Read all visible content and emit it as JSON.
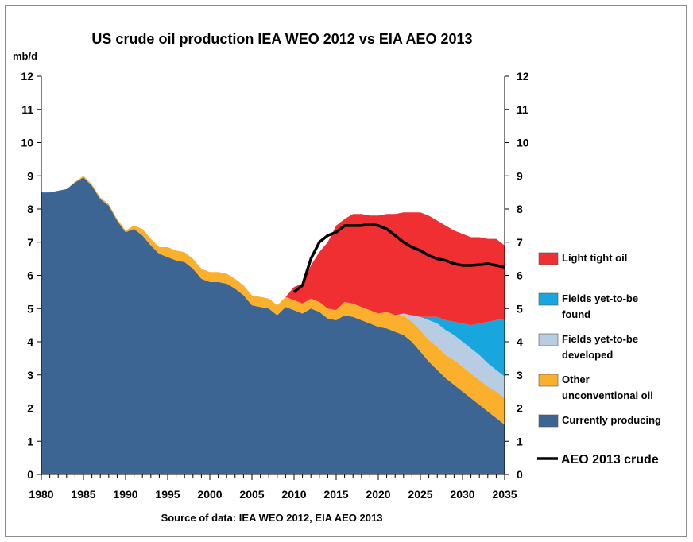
{
  "chart_data": {
    "type": "area",
    "title": "US  crude oil production  IEA WEO 2012 vs EIA AEO 2013",
    "ylabel": "mb/d",
    "source": "Source of data: IEA WEO 2012,  EIA AEO 2013",
    "xlim": [
      1980,
      2035
    ],
    "ylim": [
      0,
      12
    ],
    "x_ticks": [
      "1980",
      "1985",
      "1990",
      "1995",
      "2000",
      "2005",
      "2010",
      "2015",
      "2020",
      "2025",
      "2030",
      "2035"
    ],
    "y_ticks": [
      "0",
      "1",
      "2",
      "3",
      "4",
      "5",
      "6",
      "7",
      "8",
      "9",
      "10",
      "11",
      "12"
    ],
    "grid": false,
    "legend_position": "right",
    "x": [
      1980,
      1981,
      1982,
      1983,
      1984,
      1985,
      1986,
      1987,
      1988,
      1989,
      1990,
      1991,
      1992,
      1993,
      1994,
      1995,
      1996,
      1997,
      1998,
      1999,
      2000,
      2001,
      2002,
      2003,
      2004,
      2005,
      2006,
      2007,
      2008,
      2009,
      2010,
      2011,
      2012,
      2013,
      2014,
      2015,
      2016,
      2017,
      2018,
      2019,
      2020,
      2021,
      2022,
      2023,
      2024,
      2025,
      2026,
      2027,
      2028,
      2029,
      2030,
      2031,
      2032,
      2033,
      2034,
      2035
    ],
    "series": [
      {
        "name": "Currently producing",
        "color": "#3c6594",
        "values": [
          8.5,
          8.5,
          8.55,
          8.6,
          8.8,
          8.95,
          8.7,
          8.3,
          8.1,
          7.65,
          7.3,
          7.4,
          7.2,
          6.9,
          6.65,
          6.55,
          6.45,
          6.4,
          6.2,
          5.9,
          5.8,
          5.8,
          5.75,
          5.6,
          5.4,
          5.1,
          5.05,
          5.0,
          4.8,
          5.05,
          4.95,
          4.85,
          5.0,
          4.9,
          4.7,
          4.65,
          4.8,
          4.75,
          4.65,
          4.55,
          4.45,
          4.4,
          4.3,
          4.2,
          4.0,
          3.7,
          3.4,
          3.15,
          2.9,
          2.7,
          2.5,
          2.3,
          2.1,
          1.9,
          1.7,
          1.5
        ]
      },
      {
        "name": "Other unconventional oil",
        "color": "#fbb02d",
        "values": [
          0,
          0,
          0,
          0,
          0.02,
          0.05,
          0.05,
          0.05,
          0.05,
          0.05,
          0.05,
          0.1,
          0.2,
          0.2,
          0.2,
          0.3,
          0.3,
          0.3,
          0.3,
          0.3,
          0.3,
          0.3,
          0.3,
          0.3,
          0.3,
          0.3,
          0.3,
          0.3,
          0.3,
          0.3,
          0.3,
          0.3,
          0.3,
          0.3,
          0.3,
          0.3,
          0.4,
          0.4,
          0.4,
          0.4,
          0.4,
          0.5,
          0.5,
          0.6,
          0.6,
          0.65,
          0.65,
          0.7,
          0.7,
          0.75,
          0.75,
          0.75,
          0.75,
          0.75,
          0.8,
          0.8
        ]
      },
      {
        "name": "Fields yet-to-be developed",
        "color": "#b8cce4",
        "values": [
          0,
          0,
          0,
          0,
          0,
          0,
          0,
          0,
          0,
          0,
          0,
          0,
          0,
          0,
          0,
          0,
          0,
          0,
          0,
          0,
          0,
          0,
          0,
          0,
          0,
          0,
          0,
          0,
          0,
          0,
          0,
          0,
          0,
          0,
          0,
          0,
          0,
          0,
          0,
          0,
          0,
          0,
          0,
          0.05,
          0.2,
          0.4,
          0.6,
          0.7,
          0.75,
          0.75,
          0.75,
          0.75,
          0.75,
          0.7,
          0.65,
          0.65
        ]
      },
      {
        "name": "Fields yet-to-be found",
        "color": "#17a7de",
        "values": [
          0,
          0,
          0,
          0,
          0,
          0,
          0,
          0,
          0,
          0,
          0,
          0,
          0,
          0,
          0,
          0,
          0,
          0,
          0,
          0,
          0,
          0,
          0,
          0,
          0,
          0,
          0,
          0,
          0,
          0,
          0,
          0,
          0,
          0,
          0,
          0,
          0,
          0,
          0,
          0,
          0,
          0,
          0,
          0,
          0,
          0,
          0.1,
          0.2,
          0.3,
          0.4,
          0.55,
          0.7,
          0.95,
          1.25,
          1.5,
          1.75
        ]
      },
      {
        "name": "Light tight oil",
        "color": "#ef2f31",
        "values": [
          0,
          0,
          0,
          0,
          0,
          0,
          0,
          0,
          0,
          0,
          0,
          0,
          0,
          0,
          0,
          0,
          0,
          0,
          0,
          0,
          0,
          0,
          0,
          0,
          0,
          0,
          0,
          0,
          0,
          0,
          0.4,
          0.6,
          1.0,
          1.5,
          2.0,
          2.55,
          2.5,
          2.7,
          2.8,
          2.85,
          2.95,
          2.95,
          3.05,
          3.05,
          3.1,
          3.15,
          3.05,
          2.9,
          2.85,
          2.75,
          2.7,
          2.65,
          2.6,
          2.5,
          2.45,
          2.2
        ]
      }
    ],
    "line": {
      "name": "AEO 2013 crude",
      "color": "#000000",
      "x": [
        2010,
        2011,
        2012,
        2013,
        2014,
        2015,
        2016,
        2017,
        2018,
        2019,
        2020,
        2021,
        2022,
        2023,
        2024,
        2025,
        2026,
        2027,
        2028,
        2029,
        2030,
        2031,
        2032,
        2033,
        2034,
        2035
      ],
      "values": [
        5.5,
        5.7,
        6.5,
        7.0,
        7.2,
        7.3,
        7.5,
        7.5,
        7.5,
        7.55,
        7.5,
        7.4,
        7.2,
        7.0,
        6.85,
        6.75,
        6.6,
        6.5,
        6.45,
        6.35,
        6.3,
        6.3,
        6.32,
        6.35,
        6.3,
        6.25
      ]
    },
    "legend": [
      {
        "label_lines": [
          "Light tight oil"
        ],
        "color": "#ef2f31",
        "kind": "box"
      },
      {
        "label_lines": [
          "Fields yet-to-be",
          "found"
        ],
        "color": "#17a7de",
        "kind": "box"
      },
      {
        "label_lines": [
          "Fields yet-to-be",
          "developed"
        ],
        "color": "#b8cce4",
        "kind": "box"
      },
      {
        "label_lines": [
          "Other",
          "unconventional oil"
        ],
        "color": "#fbb02d",
        "kind": "box"
      },
      {
        "label_lines": [
          "Currently producing"
        ],
        "color": "#3c6594",
        "kind": "box"
      },
      {
        "label_lines": [
          "AEO 2013 crude"
        ],
        "color": "#000000",
        "kind": "line"
      }
    ]
  }
}
